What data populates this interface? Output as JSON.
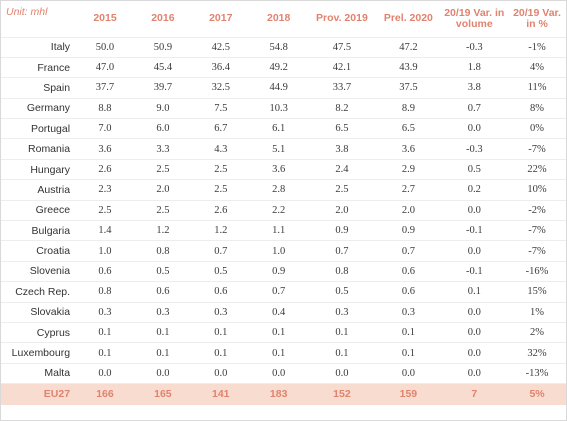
{
  "table": {
    "unit_label": "Unit: mhl",
    "headers": [
      "2015",
      "2016",
      "2017",
      "2018",
      "Prov. 2019",
      "Prel. 2020",
      "20/19 Var. in volume",
      "20/19 Var. in %"
    ],
    "rows": [
      {
        "country": "Italy",
        "cells": [
          "50.0",
          "50.9",
          "42.5",
          "54.8",
          "47.5",
          "47.2",
          "-0.3",
          "-1%"
        ]
      },
      {
        "country": "France",
        "cells": [
          "47.0",
          "45.4",
          "36.4",
          "49.2",
          "42.1",
          "43.9",
          "1.8",
          "4%"
        ]
      },
      {
        "country": "Spain",
        "cells": [
          "37.7",
          "39.7",
          "32.5",
          "44.9",
          "33.7",
          "37.5",
          "3.8",
          "11%"
        ]
      },
      {
        "country": "Germany",
        "cells": [
          "8.8",
          "9.0",
          "7.5",
          "10.3",
          "8.2",
          "8.9",
          "0.7",
          "8%"
        ]
      },
      {
        "country": "Portugal",
        "cells": [
          "7.0",
          "6.0",
          "6.7",
          "6.1",
          "6.5",
          "6.5",
          "0.0",
          "0%"
        ]
      },
      {
        "country": "Romania",
        "cells": [
          "3.6",
          "3.3",
          "4.3",
          "5.1",
          "3.8",
          "3.6",
          "-0.3",
          "-7%"
        ]
      },
      {
        "country": "Hungary",
        "cells": [
          "2.6",
          "2.5",
          "2.5",
          "3.6",
          "2.4",
          "2.9",
          "0.5",
          "22%"
        ]
      },
      {
        "country": "Austria",
        "cells": [
          "2.3",
          "2.0",
          "2.5",
          "2.8",
          "2.5",
          "2.7",
          "0.2",
          "10%"
        ]
      },
      {
        "country": "Greece",
        "cells": [
          "2.5",
          "2.5",
          "2.6",
          "2.2",
          "2.0",
          "2.0",
          "0.0",
          "-2%"
        ]
      },
      {
        "country": "Bulgaria",
        "cells": [
          "1.4",
          "1.2",
          "1.2",
          "1.1",
          "0.9",
          "0.9",
          "-0.1",
          "-7%"
        ]
      },
      {
        "country": "Croatia",
        "cells": [
          "1.0",
          "0.8",
          "0.7",
          "1.0",
          "0.7",
          "0.7",
          "0.0",
          "-7%"
        ]
      },
      {
        "country": "Slovenia",
        "cells": [
          "0.6",
          "0.5",
          "0.5",
          "0.9",
          "0.8",
          "0.6",
          "-0.1",
          "-16%"
        ]
      },
      {
        "country": "Czech Rep.",
        "cells": [
          "0.8",
          "0.6",
          "0.6",
          "0.7",
          "0.5",
          "0.6",
          "0.1",
          "15%"
        ]
      },
      {
        "country": "Slovakia",
        "cells": [
          "0.3",
          "0.3",
          "0.3",
          "0.4",
          "0.3",
          "0.3",
          "0.0",
          "1%"
        ]
      },
      {
        "country": "Cyprus",
        "cells": [
          "0.1",
          "0.1",
          "0.1",
          "0.1",
          "0.1",
          "0.1",
          "0.0",
          "2%"
        ]
      },
      {
        "country": "Luxembourg",
        "cells": [
          "0.1",
          "0.1",
          "0.1",
          "0.1",
          "0.1",
          "0.1",
          "0.0",
          "32%"
        ]
      },
      {
        "country": "Malta",
        "cells": [
          "0.0",
          "0.0",
          "0.0",
          "0.0",
          "0.0",
          "0.0",
          "0.0",
          "-13%"
        ]
      }
    ],
    "total": {
      "country": "EU27",
      "cells": [
        "166",
        "165",
        "141",
        "183",
        "152",
        "159",
        "7",
        "5%"
      ]
    }
  },
  "colors": {
    "header_text": "#e0836f",
    "total_band": "#f8dccf",
    "body_text": "#3b3b3b",
    "row_divider": "#ededed"
  }
}
